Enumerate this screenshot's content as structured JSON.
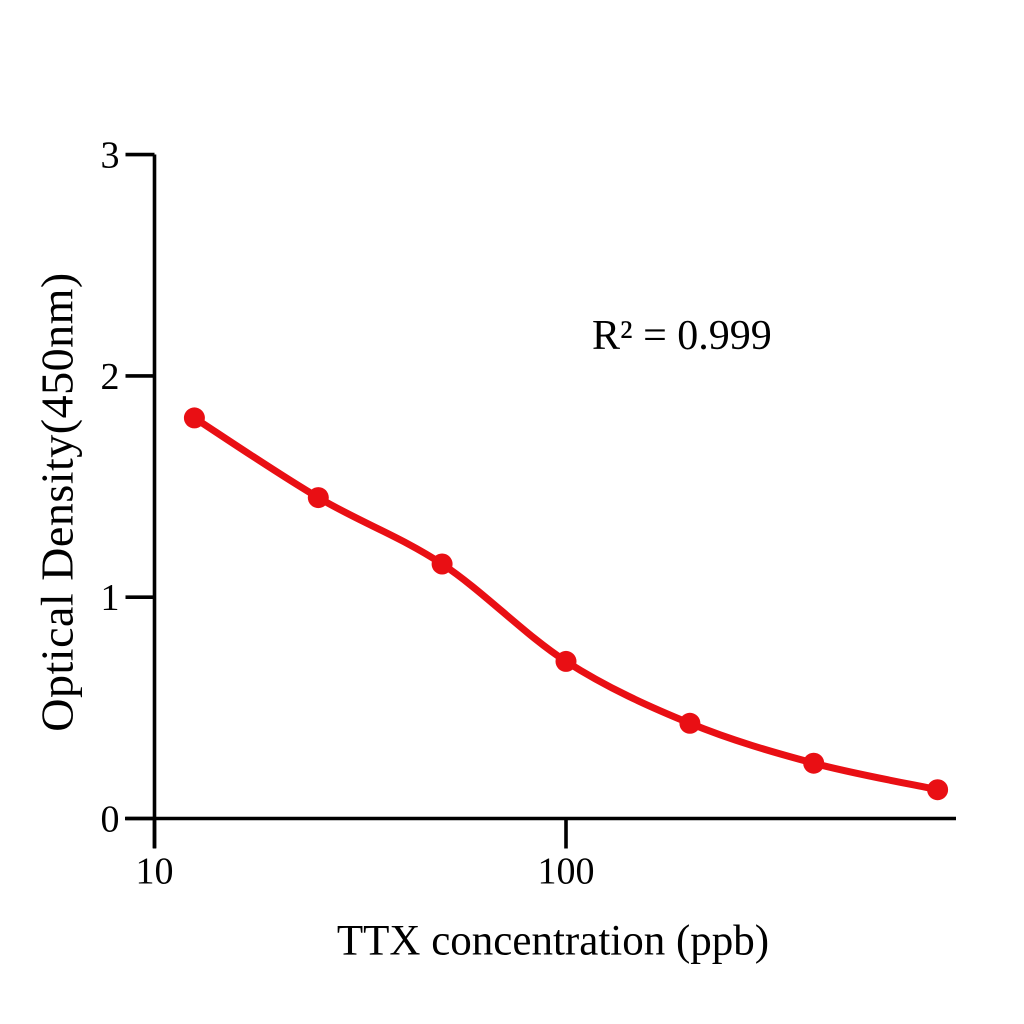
{
  "chart_data": {
    "type": "scatter",
    "title": "",
    "xlabel": "TTX concentration (ppb)",
    "ylabel": "Optical Density(450nm)",
    "x_scale": "log10",
    "points": [
      {
        "x": 12.5,
        "y": 1.81
      },
      {
        "x": 25,
        "y": 1.45
      },
      {
        "x": 50,
        "y": 1.15
      },
      {
        "x": 100,
        "y": 0.71
      },
      {
        "x": 200,
        "y": 0.43
      },
      {
        "x": 400,
        "y": 0.25
      },
      {
        "x": 800,
        "y": 0.13
      }
    ],
    "x_tick_values": [
      10,
      100
    ],
    "x_tick_labels": [
      "10",
      "100"
    ],
    "y_tick_values": [
      0,
      1,
      2,
      3
    ],
    "y_tick_labels": [
      "0",
      "1",
      "2",
      "3"
    ],
    "xlim": [
      10,
      890
    ],
    "ylim": [
      0,
      3
    ],
    "annotation": {
      "text": "R² = 0.999"
    },
    "marker": "circle",
    "smooth_fit_line": true,
    "legend": "none",
    "grid": "off",
    "series_color": "#e90f14",
    "axis_color": "#000000"
  }
}
